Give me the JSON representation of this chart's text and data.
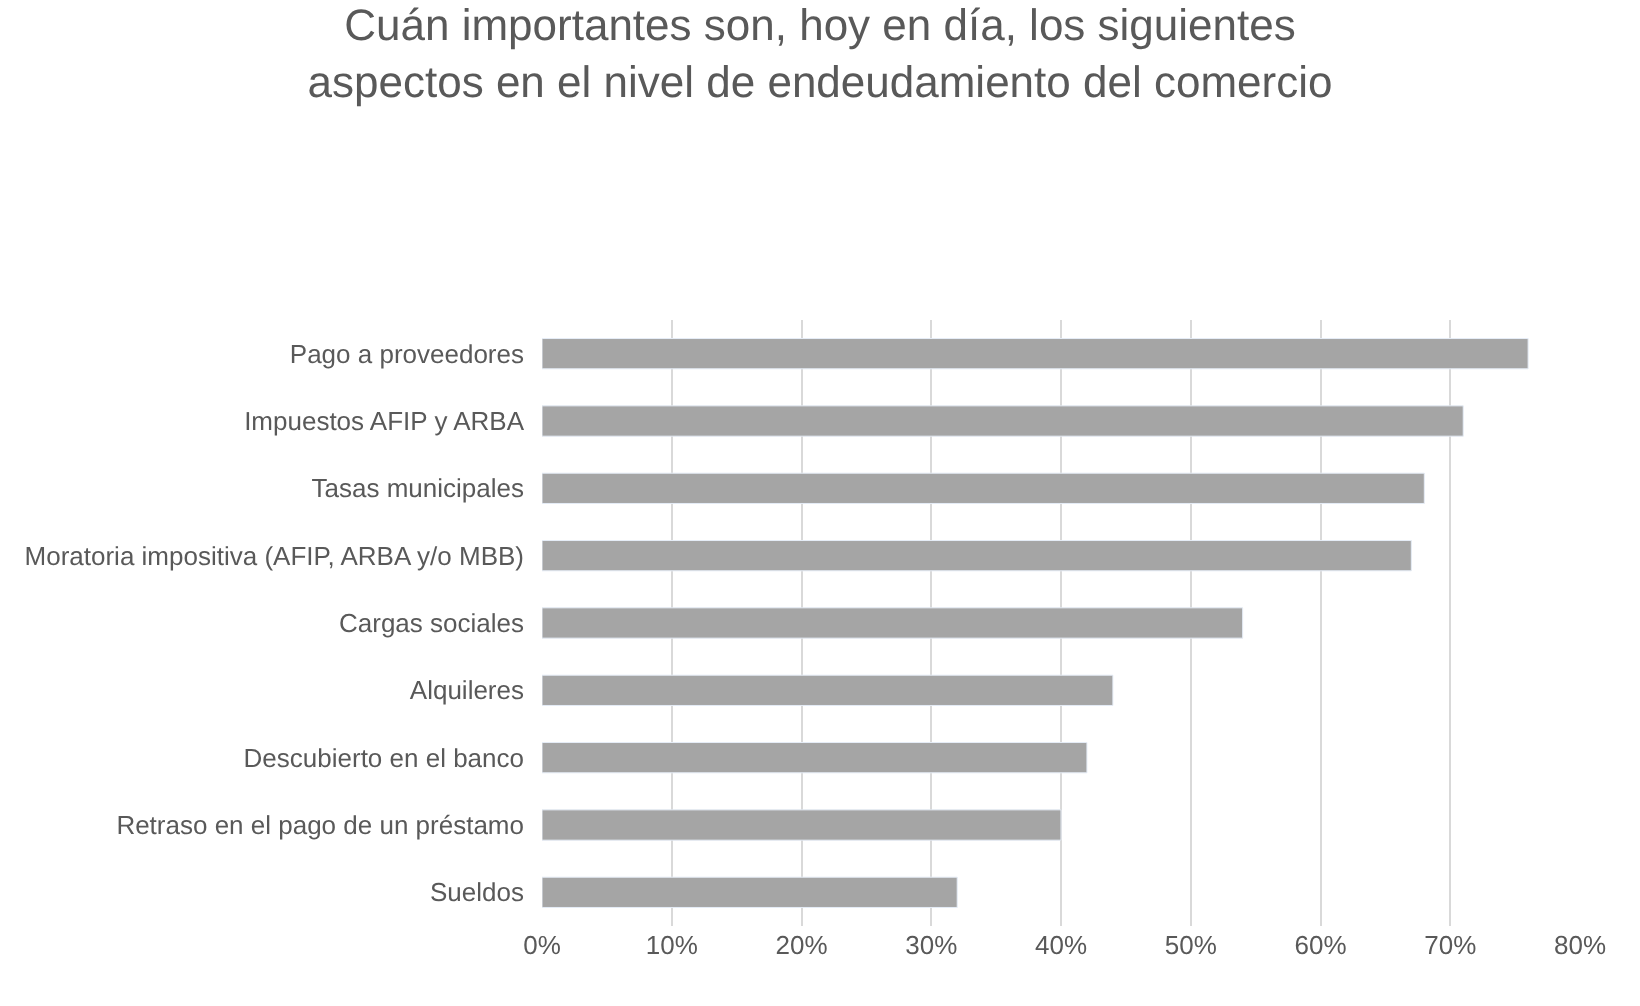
{
  "chart_data": {
    "type": "bar",
    "orientation": "horizontal",
    "title": "Cuán importantes son, hoy en día, los siguientes aspectos en el nivel de endeudamiento del comercio",
    "categories": [
      "Pago a proveedores",
      "Impuestos AFIP y ARBA",
      "Tasas municipales",
      "Moratoria impositiva (AFIP, ARBA y/o MBB)",
      "Cargas sociales",
      "Alquileres",
      "Descubierto en el banco",
      "Retraso en el pago de un préstamo",
      "Sueldos"
    ],
    "values": [
      76,
      71,
      68,
      67,
      54,
      44,
      42,
      40,
      32
    ],
    "color": "#a5a5a5",
    "xlim": [
      0,
      80
    ],
    "xticks": [
      {
        "value": 0,
        "label": "0%"
      },
      {
        "value": 10,
        "label": "10%"
      },
      {
        "value": 20,
        "label": "20%"
      },
      {
        "value": 30,
        "label": "30%"
      },
      {
        "value": 40,
        "label": "40%"
      },
      {
        "value": 50,
        "label": "50%"
      },
      {
        "value": 60,
        "label": "60%"
      },
      {
        "value": 70,
        "label": "70%"
      },
      {
        "value": 80,
        "label": "80%"
      }
    ],
    "grid": "x"
  }
}
